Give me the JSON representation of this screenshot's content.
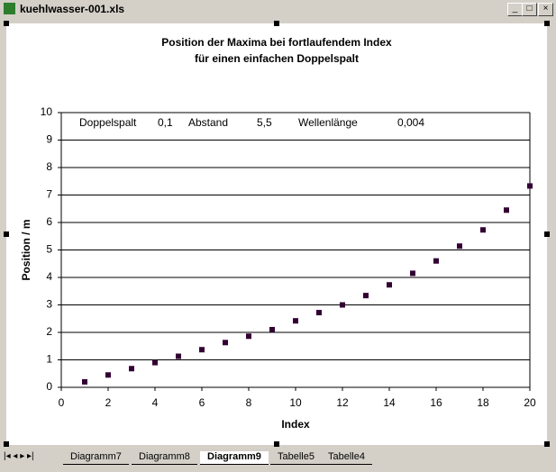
{
  "window": {
    "title": "kuehlwasser-001.xls"
  },
  "tabs": [
    "Diagramm7",
    "Diagramm8",
    "Diagramm9",
    "Tabelle5",
    "Tabelle4"
  ],
  "active_tab": 2,
  "chart_data": {
    "type": "scatter",
    "title": [
      "Position der  Maxima bei fortlaufendem Index",
      "für einen einfachen Doppelspalt"
    ],
    "x_label": "Index",
    "y_label": "Position / m",
    "annotations": [
      "Doppelspalt",
      "0,1",
      "Abstand",
      "5,5",
      "Wellenlänge",
      "0,004"
    ],
    "x": [
      1,
      2,
      3,
      4,
      5,
      6,
      7,
      8,
      9,
      10,
      11,
      12,
      13,
      14,
      15,
      16,
      17,
      18,
      19,
      20
    ],
    "values": [
      0.2,
      0.45,
      0.68,
      0.9,
      1.13,
      1.37,
      1.63,
      1.86,
      2.1,
      2.42,
      2.72,
      3.0,
      3.34,
      3.73,
      4.15,
      4.6,
      5.14,
      5.73,
      6.45,
      7.33
    ],
    "color": "#330033",
    "xlim": [
      0,
      20
    ],
    "xticks": [
      0,
      2,
      4,
      6,
      8,
      10,
      12,
      14,
      16,
      18,
      20
    ],
    "ylim": [
      0,
      10
    ],
    "yticks": [
      0,
      1,
      2,
      3,
      4,
      5,
      6,
      7,
      8,
      9,
      10
    ],
    "grid": true
  }
}
